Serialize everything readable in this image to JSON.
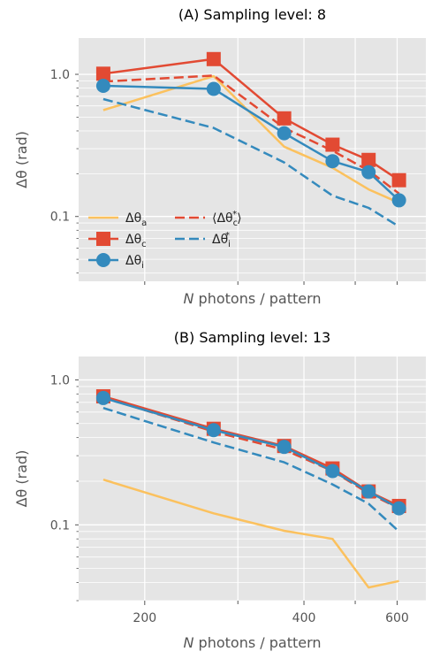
{
  "colors": {
    "theta_a": "#FBC15E",
    "theta_c": "#E24A33",
    "theta_i": "#348ABD",
    "panel_bg": "#E5E5E5",
    "grid": "#FFFFFF",
    "tick_text": "#555555"
  },
  "legend": [
    {
      "series": "theta_a",
      "main": "Δθ",
      "sub": "a",
      "sup": "",
      "open": "",
      "close": ""
    },
    {
      "series": "theta_c_star_mean",
      "main": "Δθ",
      "sub": "c",
      "sup": "*",
      "open": "⟨",
      "close": "⟩"
    },
    {
      "series": "theta_c",
      "main": "Δθ",
      "sub": "c",
      "sup": "",
      "open": "",
      "close": ""
    },
    {
      "series": "theta_i_star",
      "main": "Δθ",
      "sub": "i",
      "sup": "*",
      "open": "",
      "close": ""
    },
    {
      "series": "theta_i",
      "main": "Δθ",
      "sub": "i",
      "sup": "",
      "open": "",
      "close": ""
    }
  ],
  "chart_data": [
    {
      "type": "line",
      "title": "(A) Sampling level: 8",
      "xlabel_italic": "N",
      "xlabel_rest": " photons / pattern",
      "ylabel": "Δθ (rad)",
      "x_scale": "log",
      "y_scale": "log",
      "xlim": [
        150,
        680
      ],
      "ylim": [
        0.035,
        1.8
      ],
      "x_ticks": [
        200,
        300,
        400,
        500,
        600
      ],
      "x_tick_labels": [
        "",
        "",
        "",
        "",
        ""
      ],
      "y_ticks": [
        0.1,
        1.0
      ],
      "y_tick_labels": [
        "0.1",
        "1.0"
      ],
      "grid": true,
      "legend_position": "lower-left",
      "x": [
        167,
        270,
        367,
        453,
        530,
        605
      ],
      "series": [
        {
          "key": "theta_a",
          "style": "solid",
          "marker": "none",
          "values": [
            0.56,
            0.97,
            0.31,
            0.22,
            0.155,
            0.125
          ]
        },
        {
          "key": "theta_c_star_mean",
          "style": "dashed",
          "marker": "none",
          "values": [
            0.89,
            0.98,
            0.42,
            0.29,
            0.21,
            0.145
          ]
        },
        {
          "key": "theta_i_star",
          "style": "dashed",
          "marker": "none",
          "values": [
            0.67,
            0.42,
            0.24,
            0.14,
            0.115,
            0.085
          ]
        },
        {
          "key": "theta_c",
          "style": "solid",
          "marker": "square",
          "values": [
            1.01,
            1.28,
            0.49,
            0.32,
            0.25,
            0.18
          ]
        },
        {
          "key": "theta_i",
          "style": "solid",
          "marker": "circle",
          "values": [
            0.83,
            0.79,
            0.385,
            0.245,
            0.205,
            0.13
          ]
        }
      ]
    },
    {
      "type": "line",
      "title": "(B) Sampling level: 13",
      "xlabel_italic": "N",
      "xlabel_rest": " photons / pattern",
      "ylabel": "Δθ (rad)",
      "x_scale": "log",
      "y_scale": "log",
      "xlim": [
        150,
        680
      ],
      "ylim": [
        0.03,
        1.45
      ],
      "x_ticks": [
        200,
        300,
        400,
        500,
        600
      ],
      "x_tick_labels": [
        "200",
        "",
        "400",
        "",
        "600"
      ],
      "y_ticks": [
        0.1,
        1.0
      ],
      "y_tick_labels": [
        "0.1",
        "1.0"
      ],
      "grid": true,
      "legend_position": "none",
      "x": [
        167,
        270,
        367,
        453,
        530,
        605
      ],
      "series": [
        {
          "key": "theta_a",
          "style": "solid",
          "marker": "none",
          "values": [
            0.205,
            0.12,
            0.091,
            0.08,
            0.037,
            0.041
          ]
        },
        {
          "key": "theta_c_star_mean",
          "style": "dashed",
          "marker": "none",
          "values": [
            0.76,
            0.44,
            0.33,
            0.235,
            0.165,
            0.13
          ]
        },
        {
          "key": "theta_i_star",
          "style": "dashed",
          "marker": "none",
          "values": [
            0.64,
            0.37,
            0.27,
            0.19,
            0.14,
            0.09
          ]
        },
        {
          "key": "theta_c",
          "style": "solid",
          "marker": "square",
          "values": [
            0.77,
            0.46,
            0.35,
            0.245,
            0.17,
            0.135
          ]
        },
        {
          "key": "theta_i",
          "style": "solid",
          "marker": "circle",
          "values": [
            0.75,
            0.45,
            0.345,
            0.235,
            0.17,
            0.13
          ]
        }
      ]
    }
  ]
}
